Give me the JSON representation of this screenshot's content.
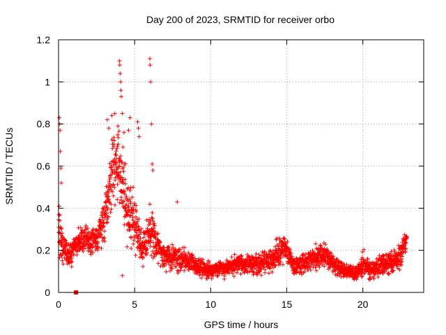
{
  "chart_data": {
    "type": "scatter",
    "title": "Day 200 of 2023, SRMTID for receiver orbo",
    "xlabel": "GPS time / hours",
    "ylabel": "SRMTID / TECUs",
    "xlim": [
      0,
      24
    ],
    "ylim": [
      0,
      1.2
    ],
    "xticks": [
      0,
      5,
      10,
      15,
      20
    ],
    "xtick_labels": [
      "0",
      "5",
      "10",
      "15",
      "20"
    ],
    "yticks": [
      0,
      0.2,
      0.4,
      0.6,
      0.8,
      1.0,
      1.2
    ],
    "ytick_labels": [
      "0",
      "0.2",
      "0.4",
      "0.6",
      "0.8",
      "1",
      "1.2"
    ],
    "grid": true,
    "marker": "+",
    "color": "#ff0000",
    "trend": [
      {
        "x": 0.0,
        "y": 0.3,
        "spread": 0.2
      },
      {
        "x": 0.3,
        "y": 0.2,
        "spread": 0.1
      },
      {
        "x": 0.7,
        "y": 0.18,
        "spread": 0.08
      },
      {
        "x": 1.5,
        "y": 0.26,
        "spread": 0.08
      },
      {
        "x": 2.5,
        "y": 0.24,
        "spread": 0.08
      },
      {
        "x": 3.0,
        "y": 0.35,
        "spread": 0.15
      },
      {
        "x": 3.5,
        "y": 0.55,
        "spread": 0.22
      },
      {
        "x": 4.0,
        "y": 0.62,
        "spread": 0.25
      },
      {
        "x": 4.5,
        "y": 0.4,
        "spread": 0.22
      },
      {
        "x": 5.0,
        "y": 0.33,
        "spread": 0.2
      },
      {
        "x": 5.5,
        "y": 0.2,
        "spread": 0.1
      },
      {
        "x": 6.0,
        "y": 0.28,
        "spread": 0.15
      },
      {
        "x": 7.0,
        "y": 0.17,
        "spread": 0.08
      },
      {
        "x": 8.0,
        "y": 0.16,
        "spread": 0.08
      },
      {
        "x": 9.0,
        "y": 0.13,
        "spread": 0.06
      },
      {
        "x": 10.0,
        "y": 0.1,
        "spread": 0.05
      },
      {
        "x": 11.0,
        "y": 0.12,
        "spread": 0.06
      },
      {
        "x": 12.0,
        "y": 0.14,
        "spread": 0.07
      },
      {
        "x": 13.0,
        "y": 0.13,
        "spread": 0.07
      },
      {
        "x": 14.0,
        "y": 0.15,
        "spread": 0.07
      },
      {
        "x": 14.8,
        "y": 0.22,
        "spread": 0.1
      },
      {
        "x": 15.5,
        "y": 0.12,
        "spread": 0.06
      },
      {
        "x": 16.5,
        "y": 0.15,
        "spread": 0.07
      },
      {
        "x": 17.5,
        "y": 0.18,
        "spread": 0.08
      },
      {
        "x": 18.5,
        "y": 0.11,
        "spread": 0.05
      },
      {
        "x": 19.5,
        "y": 0.09,
        "spread": 0.05
      },
      {
        "x": 20.0,
        "y": 0.14,
        "spread": 0.08
      },
      {
        "x": 20.5,
        "y": 0.1,
        "spread": 0.06
      },
      {
        "x": 21.5,
        "y": 0.14,
        "spread": 0.07
      },
      {
        "x": 22.5,
        "y": 0.16,
        "spread": 0.08
      },
      {
        "x": 22.8,
        "y": 0.25,
        "spread": 0.1
      }
    ],
    "spikes": [
      {
        "x": 0.05,
        "y": 0.83
      },
      {
        "x": 0.08,
        "y": 0.8
      },
      {
        "x": 0.1,
        "y": 0.77
      },
      {
        "x": 0.12,
        "y": 0.67
      },
      {
        "x": 0.15,
        "y": 0.59
      },
      {
        "x": 0.18,
        "y": 0.52
      },
      {
        "x": 3.2,
        "y": 0.82
      },
      {
        "x": 3.3,
        "y": 0.78
      },
      {
        "x": 3.5,
        "y": 0.84
      },
      {
        "x": 3.7,
        "y": 0.85
      },
      {
        "x": 3.9,
        "y": 0.79
      },
      {
        "x": 4.0,
        "y": 1.1
      },
      {
        "x": 4.02,
        "y": 1.08
      },
      {
        "x": 4.05,
        "y": 1.04
      },
      {
        "x": 4.08,
        "y": 1.0
      },
      {
        "x": 4.1,
        "y": 0.96
      },
      {
        "x": 4.12,
        "y": 0.93
      },
      {
        "x": 4.2,
        "y": 0.85
      },
      {
        "x": 4.3,
        "y": 0.76
      },
      {
        "x": 4.7,
        "y": 0.83
      },
      {
        "x": 4.6,
        "y": 0.77
      },
      {
        "x": 5.2,
        "y": 0.81
      },
      {
        "x": 5.25,
        "y": 0.78
      },
      {
        "x": 5.3,
        "y": 0.74
      },
      {
        "x": 6.0,
        "y": 1.11
      },
      {
        "x": 6.02,
        "y": 1.08
      },
      {
        "x": 6.05,
        "y": 1.0
      },
      {
        "x": 6.1,
        "y": 0.8
      },
      {
        "x": 6.15,
        "y": 0.61
      },
      {
        "x": 6.2,
        "y": 0.58
      },
      {
        "x": 4.2,
        "y": 0.08
      },
      {
        "x": 7.8,
        "y": 0.43
      }
    ],
    "sample_count": 2600,
    "x_end": 22.9,
    "square_point": {
      "x": 1.15,
      "y": 0.0
    }
  }
}
